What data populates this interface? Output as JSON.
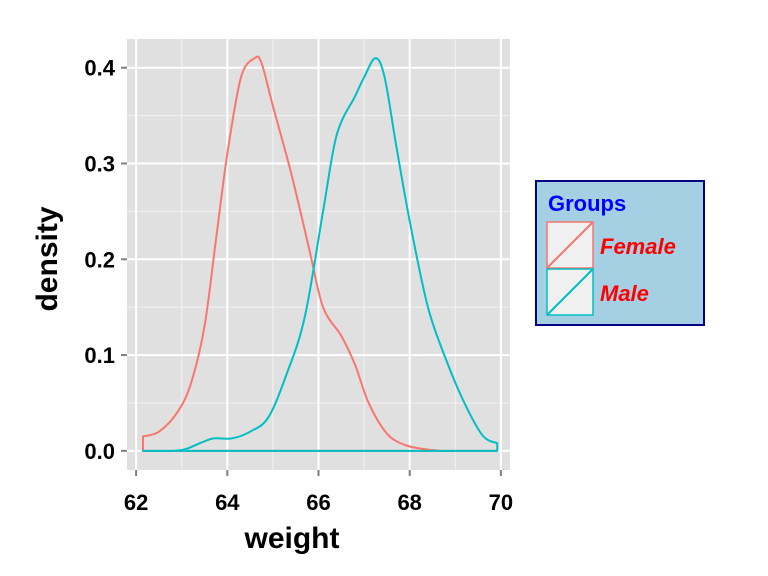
{
  "chart_data": {
    "type": "area",
    "title": "",
    "xlabel": "weight",
    "ylabel": "density",
    "xlim": [
      61.8,
      70.2
    ],
    "ylim": [
      -0.02,
      0.43
    ],
    "x_ticks": [
      "62",
      "64",
      "66",
      "68",
      "70"
    ],
    "y_ticks": [
      "0.0",
      "0.1",
      "0.2",
      "0.3",
      "0.4"
    ],
    "grid": true,
    "legend": {
      "title": "Groups",
      "position": "right",
      "background": "#a5d0e3",
      "border": "#000080",
      "title_color": "#0000ff",
      "label_color": "#ff0000"
    },
    "series": [
      {
        "name": "Female",
        "color": "#f8766d",
        "x": [
          62.15,
          62.5,
          62.9,
          63.2,
          63.5,
          63.75,
          64.0,
          64.3,
          64.6,
          64.75,
          65.0,
          65.4,
          65.8,
          66.1,
          66.5,
          66.8,
          67.1,
          67.5,
          67.9,
          68.3,
          68.7,
          69.2,
          69.92
        ],
        "y": [
          0.015,
          0.02,
          0.04,
          0.07,
          0.13,
          0.22,
          0.31,
          0.39,
          0.41,
          0.405,
          0.36,
          0.29,
          0.21,
          0.15,
          0.12,
          0.09,
          0.05,
          0.018,
          0.006,
          0.002,
          0.0,
          0.0,
          0.0
        ]
      },
      {
        "name": "Male",
        "color": "#00bfc4",
        "x": [
          62.15,
          62.8,
          63.1,
          63.4,
          63.7,
          64.1,
          64.5,
          64.9,
          65.3,
          65.7,
          66.1,
          66.4,
          66.8,
          67.0,
          67.25,
          67.45,
          67.7,
          68.0,
          68.4,
          68.8,
          69.2,
          69.6,
          69.92
        ],
        "y": [
          0.0,
          0.0,
          0.002,
          0.008,
          0.013,
          0.013,
          0.02,
          0.035,
          0.08,
          0.14,
          0.25,
          0.33,
          0.37,
          0.39,
          0.41,
          0.39,
          0.32,
          0.24,
          0.15,
          0.095,
          0.05,
          0.016,
          0.008
        ]
      }
    ]
  }
}
